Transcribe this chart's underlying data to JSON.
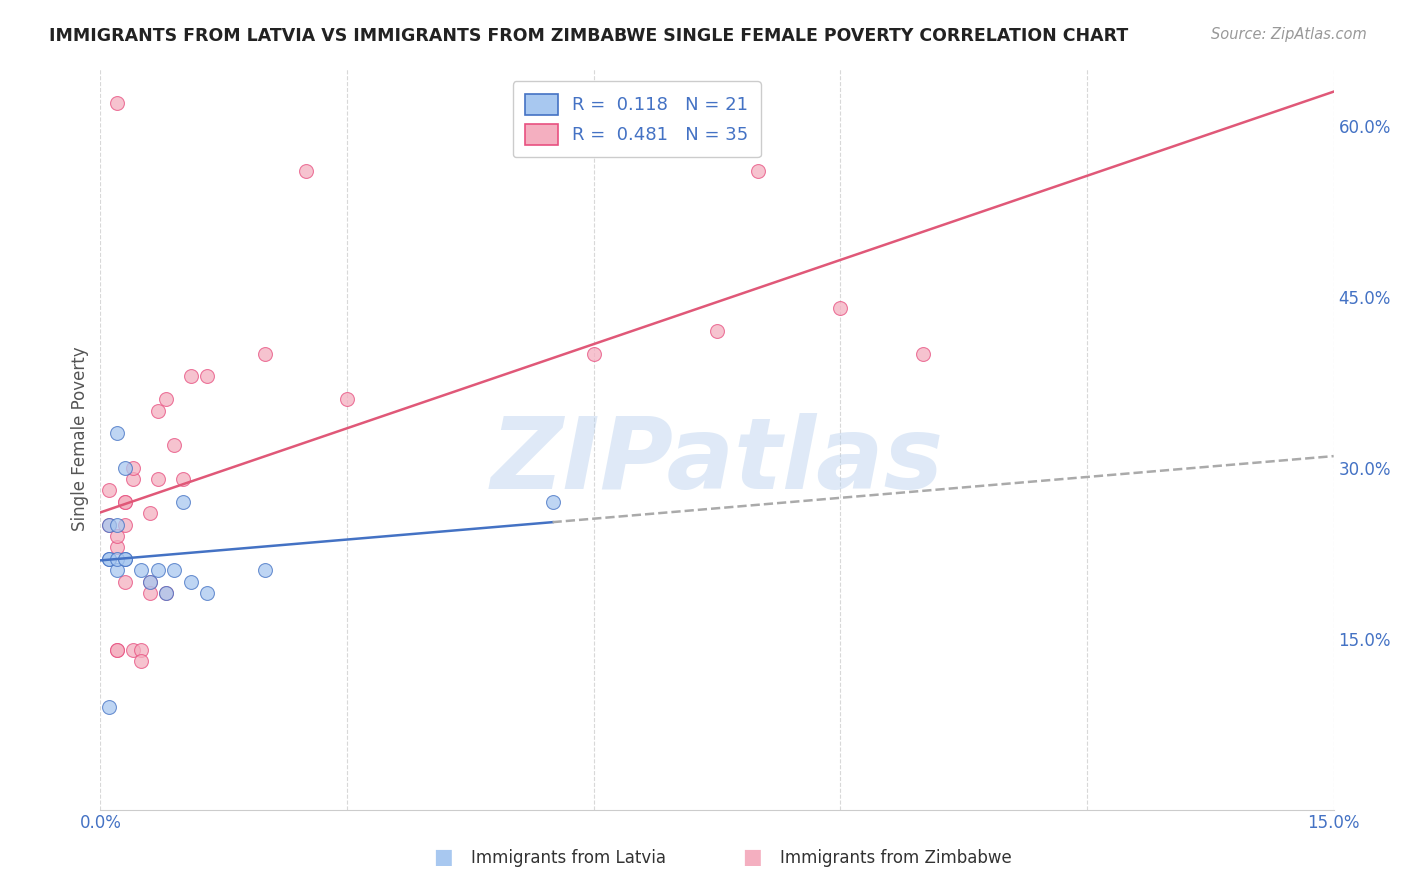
{
  "title": "IMMIGRANTS FROM LATVIA VS IMMIGRANTS FROM ZIMBABWE SINGLE FEMALE POVERTY CORRELATION CHART",
  "source": "Source: ZipAtlas.com",
  "ylabel": "Single Female Poverty",
  "x_min": 0.0,
  "x_max": 0.15,
  "y_min": 0.0,
  "y_max": 0.65,
  "x_tick_positions": [
    0.0,
    0.03,
    0.06,
    0.09,
    0.12,
    0.15
  ],
  "x_tick_labels": [
    "0.0%",
    "",
    "",
    "",
    "",
    "15.0%"
  ],
  "y_tick_vals_right": [
    0.15,
    0.3,
    0.45,
    0.6
  ],
  "y_tick_labels_right": [
    "15.0%",
    "30.0%",
    "45.0%",
    "60.0%"
  ],
  "latvia_color": "#a8c8f0",
  "zimbabwe_color": "#f4afc0",
  "latvia_edge_color": "#4472c4",
  "zimbabwe_edge_color": "#e85080",
  "latvia_line_color": "#4472c4",
  "zimbabwe_line_color": "#e05878",
  "dashed_line_color": "#aaaaaa",
  "R_latvia": 0.118,
  "N_latvia": 21,
  "R_zimbabwe": 0.481,
  "N_zimbabwe": 35,
  "legend_label_latvia": "Immigrants from Latvia",
  "legend_label_zimbabwe": "Immigrants from Zimbabwe",
  "watermark_text": "ZIPatlas",
  "background_color": "#ffffff",
  "grid_color": "#d8d8d8",
  "title_color": "#222222",
  "tick_label_color": "#4472c4",
  "legend_text_color": "#4472c4",
  "latvia_x": [
    0.001,
    0.002,
    0.002,
    0.003,
    0.003,
    0.005,
    0.006,
    0.007,
    0.008,
    0.009,
    0.01,
    0.011,
    0.013,
    0.02,
    0.001,
    0.001,
    0.002,
    0.002,
    0.003,
    0.055,
    0.001
  ],
  "latvia_y": [
    0.25,
    0.25,
    0.33,
    0.3,
    0.22,
    0.21,
    0.2,
    0.21,
    0.19,
    0.21,
    0.27,
    0.2,
    0.19,
    0.21,
    0.22,
    0.22,
    0.21,
    0.22,
    0.22,
    0.27,
    0.09
  ],
  "zimbabwe_x": [
    0.001,
    0.001,
    0.002,
    0.002,
    0.002,
    0.002,
    0.003,
    0.003,
    0.003,
    0.004,
    0.004,
    0.005,
    0.005,
    0.006,
    0.006,
    0.007,
    0.007,
    0.008,
    0.009,
    0.01,
    0.011,
    0.013,
    0.02,
    0.025,
    0.03,
    0.06,
    0.075,
    0.08,
    0.09,
    0.1,
    0.002,
    0.003,
    0.004,
    0.006,
    0.008
  ],
  "zimbabwe_y": [
    0.25,
    0.28,
    0.23,
    0.24,
    0.14,
    0.14,
    0.27,
    0.25,
    0.27,
    0.29,
    0.14,
    0.14,
    0.13,
    0.26,
    0.2,
    0.35,
    0.29,
    0.36,
    0.32,
    0.29,
    0.38,
    0.38,
    0.4,
    0.56,
    0.36,
    0.4,
    0.42,
    0.56,
    0.44,
    0.4,
    0.62,
    0.2,
    0.3,
    0.19,
    0.19
  ],
  "marker_size": 100,
  "marker_alpha": 0.75,
  "line_width": 1.8
}
